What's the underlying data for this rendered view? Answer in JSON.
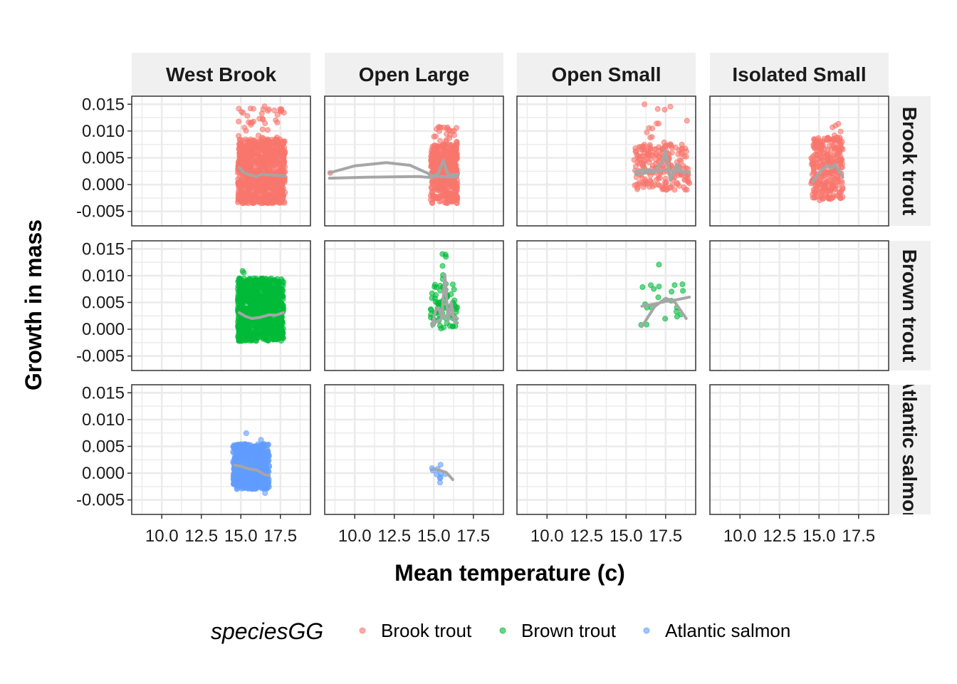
{
  "chart_data": {
    "type": "scatter",
    "xlabel": "Mean temperature (c)",
    "ylabel": "Growth in mass",
    "x_ticks": [
      "10.0",
      "12.5",
      "15.0",
      "17.5"
    ],
    "x_tick_values": [
      10.0,
      12.5,
      15.0,
      17.5
    ],
    "y_ticks": [
      "0.015",
      "0.010",
      "0.005",
      "0.000",
      "-0.005"
    ],
    "y_tick_values": [
      0.015,
      0.01,
      0.005,
      0.0,
      -0.005
    ],
    "xlim": [
      8.1,
      19.4
    ],
    "ylim": [
      -0.0077,
      0.0165
    ],
    "columns": [
      "West Brook",
      "Open Large",
      "Open Small",
      "Isolated Small"
    ],
    "rows": [
      "Brook trout",
      "Brown trout",
      "Atlantic salmon"
    ],
    "legend": {
      "title": "speciesGG",
      "position": "bottom",
      "entries": [
        {
          "label": "Brook trout",
          "color": "#F8766D"
        },
        {
          "label": "Brown trout",
          "color": "#00BA38"
        },
        {
          "label": "Atlantic salmon",
          "color": "#619CFF"
        }
      ]
    },
    "smooth_color": "#A6A6A6",
    "panels": [
      {
        "row": 0,
        "col": 0,
        "species": "Brook trout",
        "clusters": [
          {
            "xmin": 14.8,
            "xmax": 17.8,
            "ymin": -0.0035,
            "ymax": 0.0085,
            "n": 900
          },
          {
            "xmin": 14.8,
            "xmax": 17.8,
            "ymin": 0.0085,
            "ymax": 0.015,
            "n": 40
          }
        ],
        "smooth": [
          [
            [
              14.9,
              0.0032
            ],
            [
              15.2,
              0.0022
            ],
            [
              15.6,
              0.0018
            ],
            [
              16.0,
              0.0015
            ],
            [
              16.3,
              0.0019
            ],
            [
              16.8,
              0.0018
            ],
            [
              17.3,
              0.0017
            ],
            [
              17.8,
              0.0016
            ]
          ]
        ]
      },
      {
        "row": 0,
        "col": 1,
        "species": "Brook trout",
        "clusters": [
          {
            "xmin": 14.8,
            "xmax": 16.5,
            "ymin": -0.0035,
            "ymax": 0.0075,
            "n": 420
          },
          {
            "xmin": 15.0,
            "xmax": 16.5,
            "ymin": 0.0075,
            "ymax": 0.0108,
            "n": 25
          },
          {
            "xmin": 8.3,
            "xmax": 8.6,
            "ymin": 0.0015,
            "ymax": 0.0025,
            "n": 1
          }
        ],
        "smooth": [
          [
            [
              8.4,
              0.0022
            ],
            [
              10.0,
              0.0035
            ],
            [
              12.0,
              0.0041
            ],
            [
              13.5,
              0.0036
            ],
            [
              15.0,
              0.0016
            ],
            [
              15.5,
              0.0015
            ],
            [
              16.0,
              0.0014
            ],
            [
              16.5,
              0.0015
            ]
          ],
          [
            [
              8.4,
              0.0012
            ],
            [
              11.0,
              0.0014
            ],
            [
              14.0,
              0.0015
            ],
            [
              14.9,
              0.0013
            ],
            [
              15.3,
              0.0022
            ],
            [
              15.6,
              0.0045
            ],
            [
              15.9,
              0.0018
            ],
            [
              16.5,
              0.0019
            ]
          ]
        ]
      },
      {
        "row": 0,
        "col": 2,
        "species": "Brook trout",
        "clusters": [
          {
            "xmin": 15.5,
            "xmax": 19.0,
            "ymin": -0.001,
            "ymax": 0.0075,
            "n": 200
          },
          {
            "xmin": 16.0,
            "xmax": 19.0,
            "ymin": 0.0075,
            "ymax": 0.0155,
            "n": 14
          }
        ],
        "smooth": [
          [
            [
              15.6,
              0.0025
            ],
            [
              16.2,
              0.0028
            ],
            [
              16.8,
              0.0026
            ],
            [
              17.3,
              0.0042
            ],
            [
              17.5,
              0.0064
            ],
            [
              17.8,
              0.0008
            ],
            [
              18.2,
              0.0038
            ],
            [
              18.6,
              0.0022
            ],
            [
              19.0,
              0.0024
            ]
          ],
          [
            [
              15.6,
              0.0019
            ],
            [
              16.5,
              0.0023
            ],
            [
              17.5,
              0.0027
            ],
            [
              18.3,
              0.0025
            ],
            [
              19.0,
              0.0023
            ]
          ]
        ]
      },
      {
        "row": 0,
        "col": 3,
        "species": "Brook trout",
        "clusters": [
          {
            "xmin": 14.5,
            "xmax": 16.5,
            "ymin": -0.003,
            "ymax": 0.0088,
            "n": 280
          },
          {
            "xmin": 15.8,
            "xmax": 16.4,
            "ymin": 0.0088,
            "ymax": 0.0118,
            "n": 6
          }
        ],
        "smooth": [
          [
            [
              14.6,
              0.0005
            ],
            [
              14.9,
              0.0018
            ],
            [
              15.2,
              0.0028
            ],
            [
              15.5,
              0.0036
            ],
            [
              15.8,
              0.003
            ],
            [
              16.0,
              0.0038
            ],
            [
              16.3,
              0.0024
            ],
            [
              16.5,
              0.0014
            ]
          ]
        ]
      },
      {
        "row": 1,
        "col": 0,
        "species": "Brown trout",
        "clusters": [
          {
            "xmin": 14.8,
            "xmax": 17.7,
            "ymin": -0.0022,
            "ymax": 0.0095,
            "n": 900
          },
          {
            "xmin": 14.8,
            "xmax": 15.2,
            "ymin": 0.0095,
            "ymax": 0.012,
            "n": 2
          }
        ],
        "smooth": [
          [
            [
              14.9,
              0.0031
            ],
            [
              15.3,
              0.0024
            ],
            [
              15.7,
              0.002
            ],
            [
              16.2,
              0.0022
            ],
            [
              16.8,
              0.0027
            ],
            [
              17.2,
              0.0026
            ],
            [
              17.7,
              0.0031
            ]
          ]
        ]
      },
      {
        "row": 1,
        "col": 1,
        "species": "Brown trout",
        "clusters": [
          {
            "xmin": 14.8,
            "xmax": 16.5,
            "ymin": 0.0,
            "ymax": 0.0085,
            "n": 70
          },
          {
            "xmin": 15.4,
            "xmax": 15.8,
            "ymin": 0.0085,
            "ymax": 0.0143,
            "n": 6
          }
        ],
        "smooth": [
          [
            [
              14.9,
              0.0005
            ],
            [
              15.1,
              0.0035
            ],
            [
              15.3,
              0.004
            ],
            [
              15.5,
              0.0022
            ],
            [
              15.7,
              0.0102
            ],
            [
              15.9,
              0.0016
            ],
            [
              16.1,
              0.005
            ],
            [
              16.3,
              0.0014
            ],
            [
              16.5,
              0.0012
            ]
          ],
          [
            [
              14.9,
              0.0008
            ],
            [
              15.5,
              0.002
            ],
            [
              16.0,
              0.003
            ],
            [
              16.5,
              0.002
            ]
          ]
        ]
      },
      {
        "row": 1,
        "col": 2,
        "species": "Brown trout",
        "clusters": [
          {
            "xmin": 15.7,
            "xmax": 18.8,
            "ymin": 0.0,
            "ymax": 0.0085,
            "n": 20
          },
          {
            "xmin": 16.9,
            "xmax": 17.1,
            "ymin": 0.0118,
            "ymax": 0.0123,
            "n": 1
          }
        ],
        "smooth": [
          [
            [
              16.0,
              0.0043
            ],
            [
              16.8,
              0.0047
            ],
            [
              17.5,
              0.0052
            ],
            [
              18.2,
              0.0055
            ],
            [
              19.0,
              0.006
            ]
          ],
          [
            [
              16.0,
              0.0005
            ],
            [
              16.8,
              0.0042
            ],
            [
              17.5,
              0.0058
            ],
            [
              18.1,
              0.005
            ],
            [
              18.8,
              0.002
            ]
          ]
        ]
      },
      {
        "row": 2,
        "col": 0,
        "species": "Atlantic salmon",
        "clusters": [
          {
            "xmin": 14.5,
            "xmax": 16.8,
            "ymin": -0.003,
            "ymax": 0.0055,
            "n": 600
          },
          {
            "xmin": 15.0,
            "xmax": 16.6,
            "ymin": -0.007,
            "ymax": 0.0082,
            "n": 4
          }
        ],
        "smooth": [
          [
            [
              14.6,
              0.0015
            ],
            [
              15.0,
              0.0013
            ],
            [
              15.5,
              0.0008
            ],
            [
              16.0,
              0.0006
            ],
            [
              16.5,
              -0.0003
            ],
            [
              16.8,
              -0.0004
            ]
          ]
        ]
      },
      {
        "row": 2,
        "col": 1,
        "species": "Atlantic salmon",
        "clusters": [
          {
            "xmin": 14.8,
            "xmax": 16.2,
            "ymin": -0.002,
            "ymax": 0.0025,
            "n": 10
          }
        ],
        "smooth": [
          [
            [
              15.0,
              0.0008
            ],
            [
              15.4,
              0.0005
            ],
            [
              15.8,
              0.0001
            ],
            [
              16.2,
              -0.0012
            ]
          ]
        ]
      }
    ]
  }
}
